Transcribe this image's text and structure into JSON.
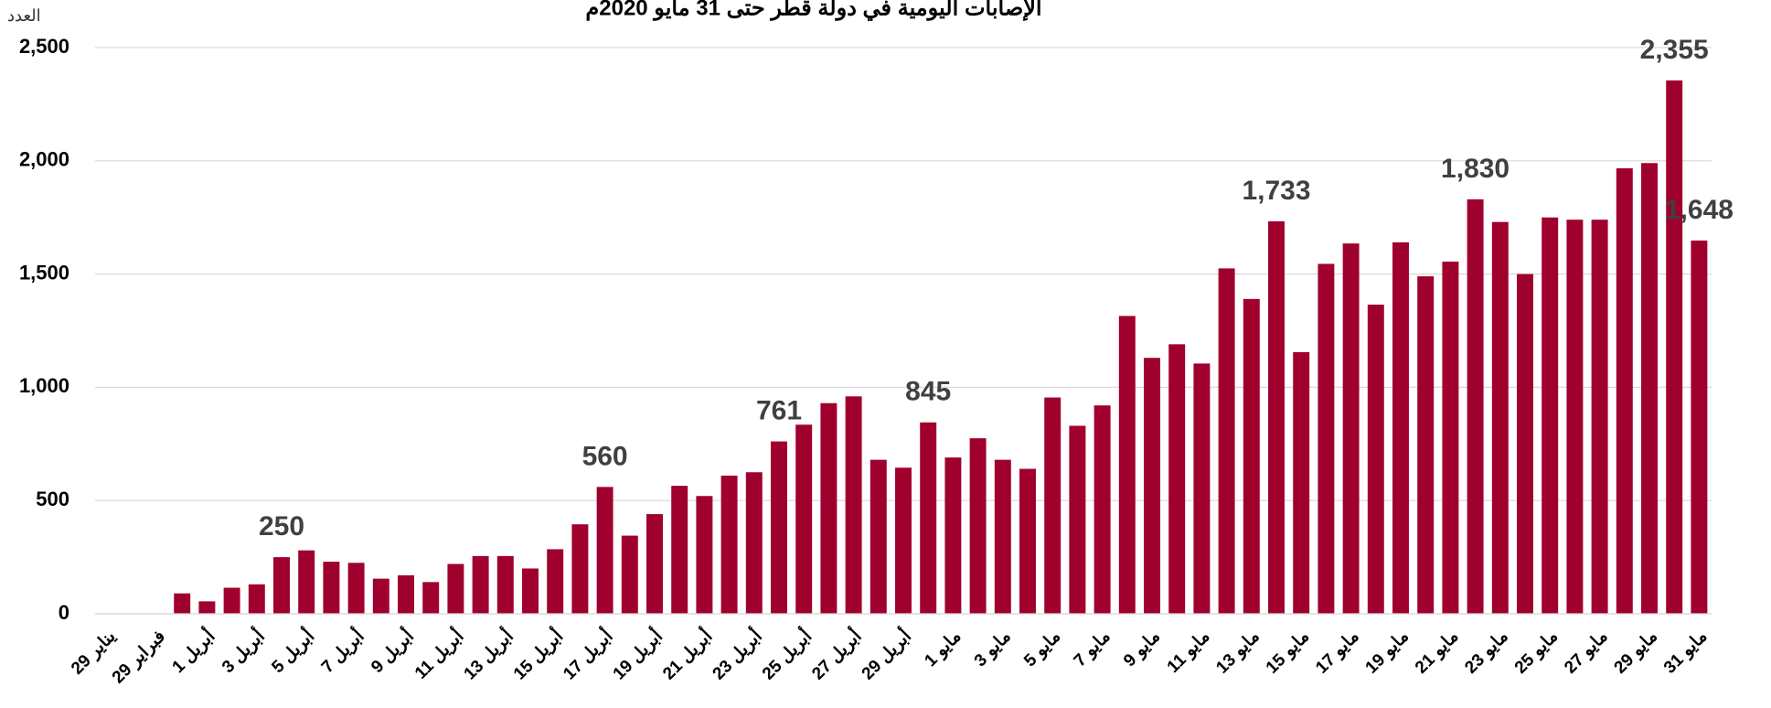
{
  "chart_data": {
    "type": "bar",
    "title": "الإصابات اليومية في دولة قطر حتى 31 مايو 2020م",
    "y_label": "العدد",
    "categories": [
      "29 يناير",
      null,
      "29 فبراير",
      null,
      "1 أبريل",
      null,
      "3 أبريل",
      null,
      "5 أبريل",
      null,
      "7 أبريل",
      null,
      "9 أبريل",
      null,
      "11 أبريل",
      null,
      "13 أبريل",
      null,
      "15 أبريل",
      null,
      "17 أبريل",
      null,
      "19 أبريل",
      null,
      "21 أبريل",
      null,
      "23 أبريل",
      null,
      "25 أبريل",
      null,
      "27 أبريل",
      null,
      "29 أبريل",
      null,
      "1 مايو",
      null,
      "3 مايو",
      null,
      "5 مايو",
      null,
      "7 مايو",
      null,
      "9 مايو",
      null,
      "11 مايو",
      null,
      "13 مايو",
      null,
      "15 مايو",
      null,
      "17 مايو",
      null,
      "19 مايو",
      null,
      "21 مايو",
      null,
      "23 مايو",
      null,
      "25 مايو",
      null,
      "27 مايو",
      null,
      "29 مايو",
      null,
      "31 مايو"
    ],
    "values": [
      0,
      0,
      1,
      90,
      55,
      115,
      130,
      250,
      280,
      230,
      225,
      155,
      170,
      140,
      220,
      255,
      255,
      200,
      285,
      395,
      560,
      345,
      440,
      565,
      520,
      610,
      625,
      761,
      835,
      930,
      960,
      680,
      645,
      845,
      690,
      775,
      680,
      640,
      955,
      830,
      920,
      1315,
      1130,
      1190,
      1105,
      1525,
      1390,
      1733,
      1155,
      1545,
      1635,
      1365,
      1640,
      1490,
      1555,
      1830,
      1730,
      1500,
      1750,
      1740,
      1740,
      1967,
      1990,
      2355,
      1648
    ],
    "value_labels": [
      null,
      null,
      null,
      null,
      null,
      null,
      null,
      "250",
      null,
      null,
      null,
      null,
      null,
      null,
      null,
      null,
      null,
      null,
      null,
      null,
      "560",
      null,
      null,
      null,
      null,
      null,
      null,
      "761",
      null,
      null,
      null,
      null,
      null,
      "845",
      null,
      null,
      null,
      null,
      null,
      null,
      null,
      null,
      null,
      null,
      null,
      null,
      null,
      "1,733",
      null,
      null,
      null,
      null,
      null,
      null,
      null,
      "1,830",
      null,
      null,
      null,
      null,
      null,
      null,
      null,
      "2,355",
      "1,648"
    ],
    "color": "#a0002d",
    "ylim": [
      0,
      2500
    ],
    "yticks": [
      0,
      500,
      {
        "value": 1000,
        "label": "1,000"
      },
      {
        "value": 1500,
        "label": "1,500"
      },
      {
        "value": 2000,
        "label": "2,000"
      },
      {
        "value": 2500,
        "label": "2,500"
      }
    ],
    "grid": true
  }
}
